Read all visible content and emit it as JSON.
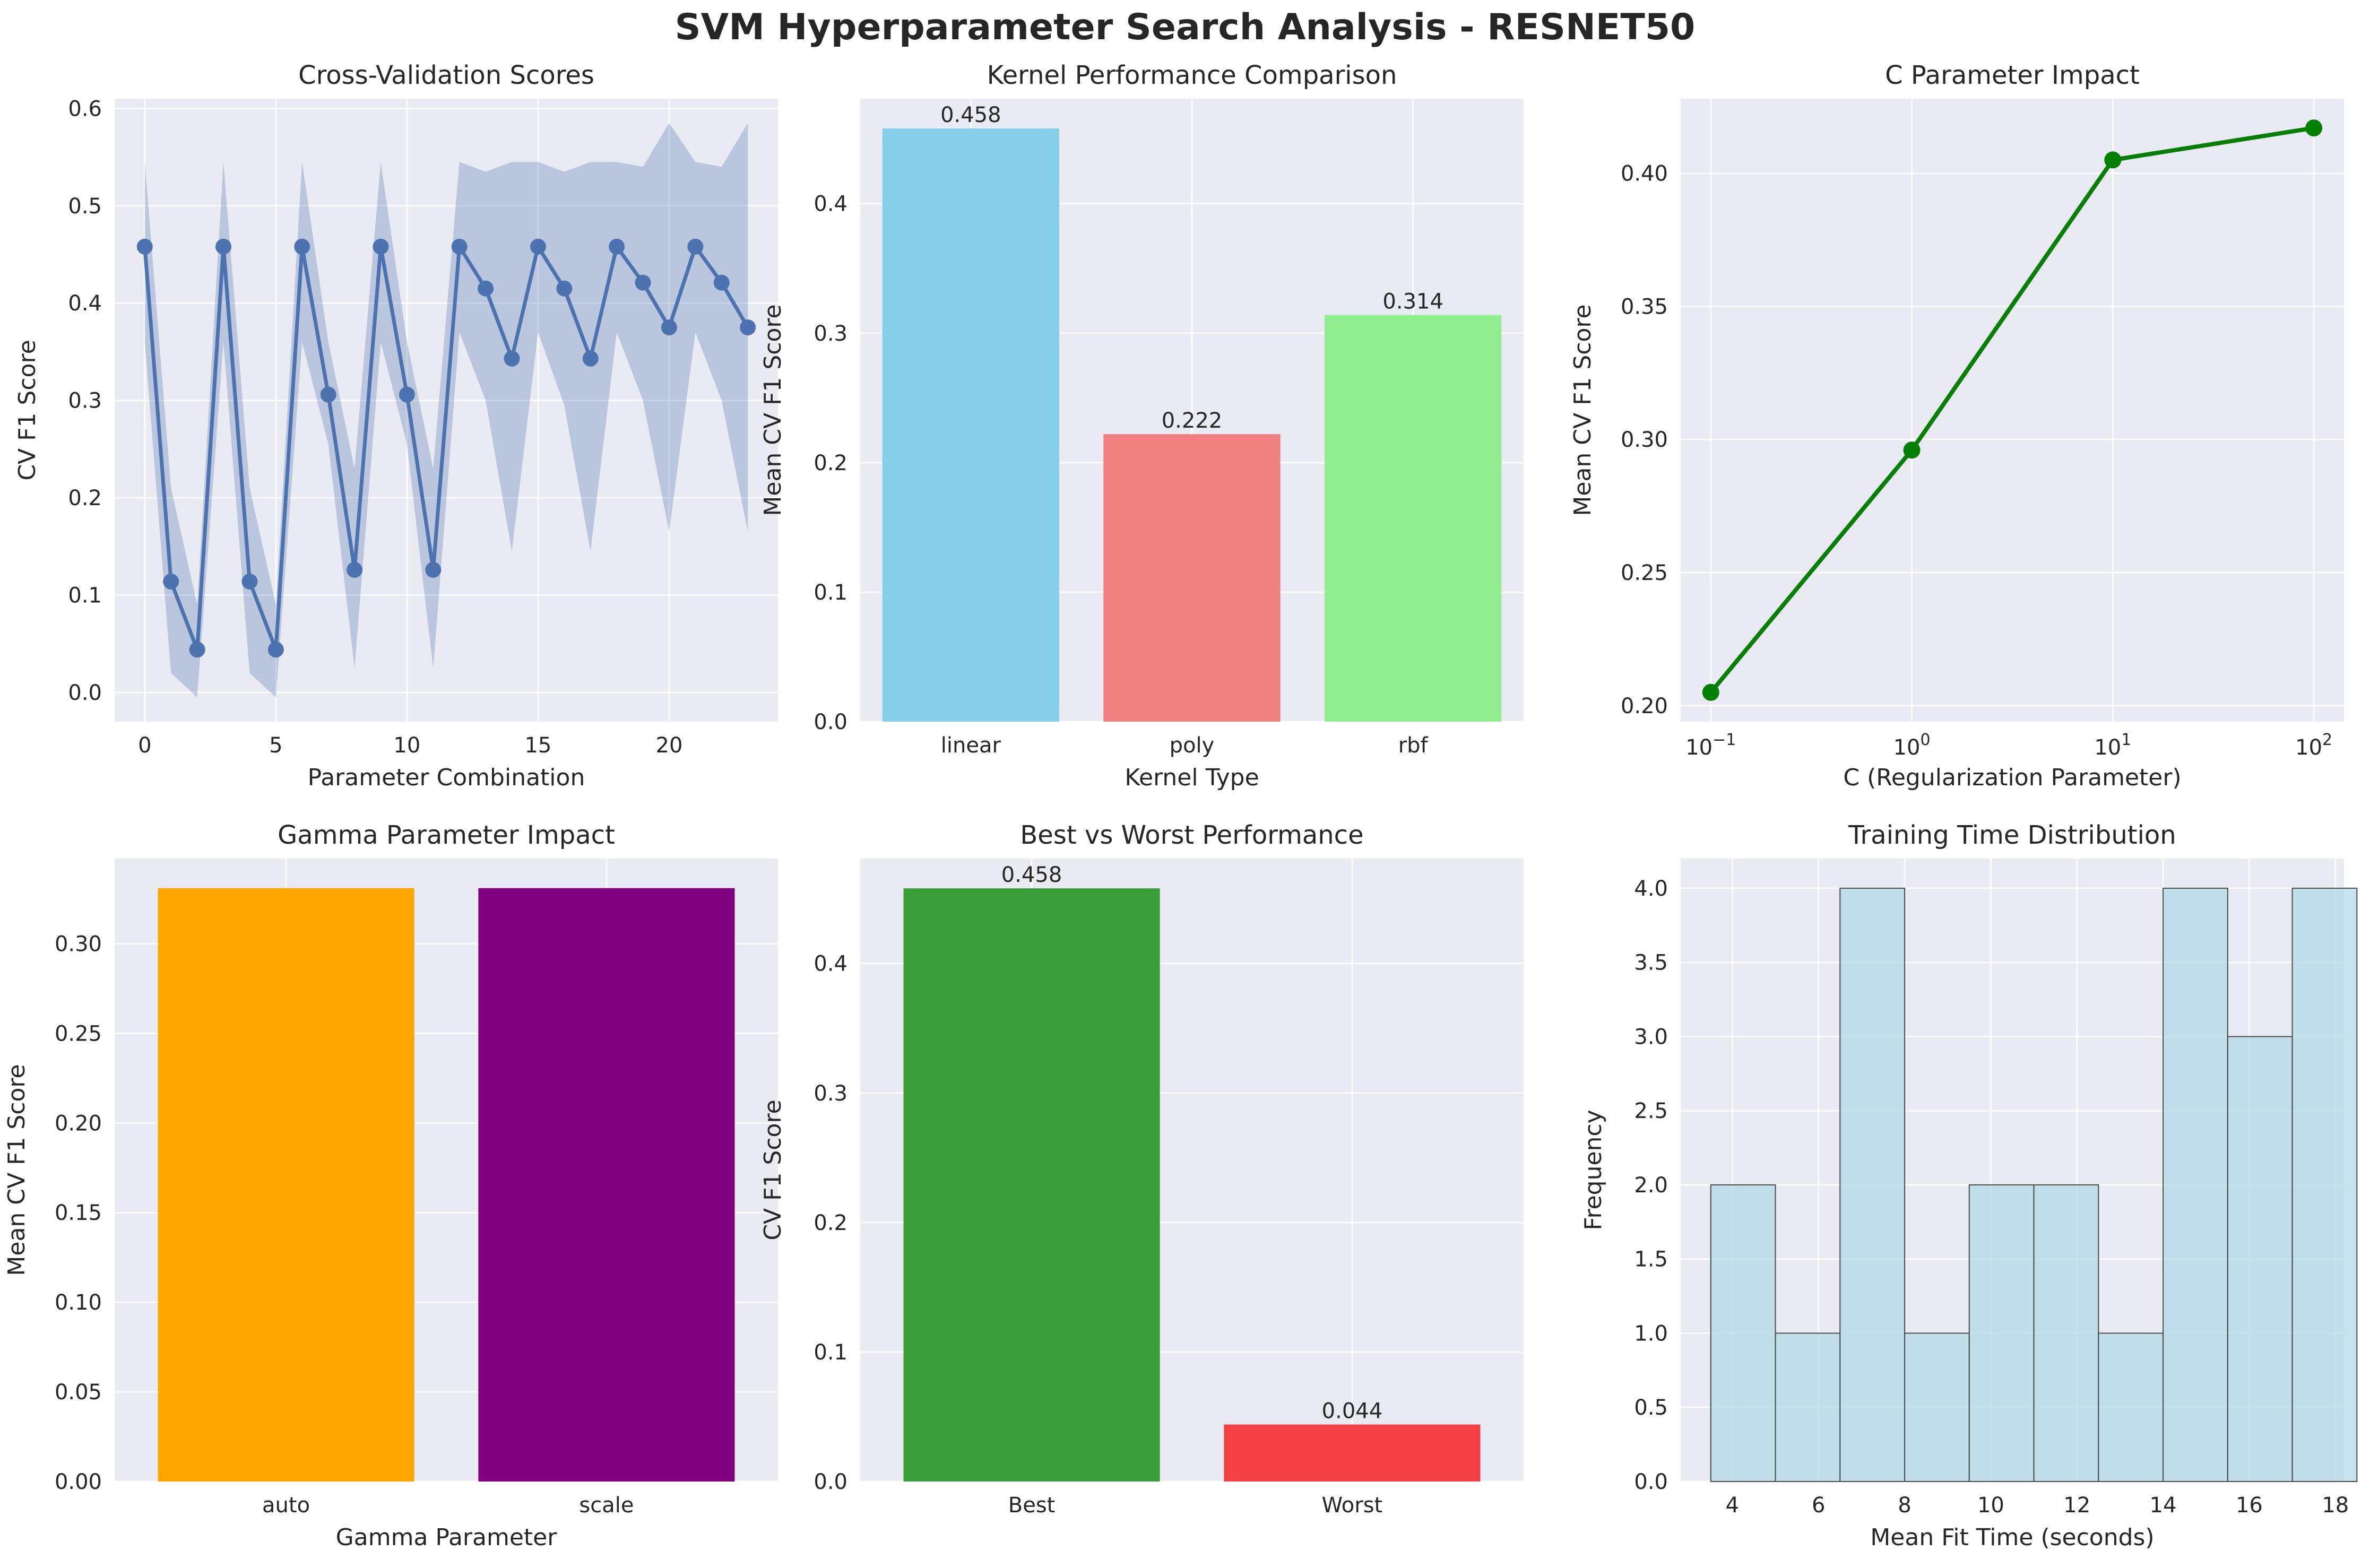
{
  "figure": {
    "title": "SVM Hyperparameter Search Analysis - RESNET50"
  },
  "colors": {
    "axes_bg": "#eaeaf2",
    "grid": "#ffffff",
    "cv_line": "#4c72b0",
    "cv_band": "#4c72b0",
    "c_line": "#007f00",
    "hist_fill": "#add8e6",
    "hist_edge": "#4a4a4a"
  },
  "chart_data": [
    {
      "id": "cv",
      "type": "line",
      "title": "Cross-Validation Scores",
      "xlabel": "Parameter Combination",
      "ylabel": "CV F1 Score",
      "xlim": [
        -1.15,
        24.15
      ],
      "ylim": [
        -0.03,
        0.61
      ],
      "xticks": [
        0,
        5,
        10,
        15,
        20
      ],
      "yticks": [
        0.0,
        0.1,
        0.2,
        0.3,
        0.4,
        0.5,
        0.6
      ],
      "tick_format": "1",
      "x": [
        0,
        1,
        2,
        3,
        4,
        5,
        6,
        7,
        8,
        9,
        10,
        11,
        12,
        13,
        14,
        15,
        16,
        17,
        18,
        19,
        20,
        21,
        22,
        23
      ],
      "series": [
        {
          "values": [
            0.458,
            0.114,
            0.044,
            0.458,
            0.114,
            0.044,
            0.458,
            0.306,
            0.126,
            0.458,
            0.306,
            0.126,
            0.458,
            0.415,
            0.343,
            0.458,
            0.415,
            0.343,
            0.458,
            0.421,
            0.375,
            0.458,
            0.421,
            0.375
          ],
          "lower": [
            0.36,
            0.02,
            -0.005,
            0.36,
            0.02,
            -0.005,
            0.36,
            0.255,
            0.025,
            0.36,
            0.255,
            0.025,
            0.37,
            0.3,
            0.145,
            0.37,
            0.295,
            0.145,
            0.37,
            0.3,
            0.165,
            0.37,
            0.3,
            0.165
          ],
          "upper": [
            0.545,
            0.21,
            0.09,
            0.545,
            0.21,
            0.09,
            0.545,
            0.36,
            0.23,
            0.545,
            0.36,
            0.23,
            0.545,
            0.535,
            0.545,
            0.545,
            0.535,
            0.545,
            0.545,
            0.54,
            0.585,
            0.545,
            0.54,
            0.585
          ]
        }
      ]
    },
    {
      "id": "kernel",
      "type": "bar",
      "title": "Kernel Performance Comparison",
      "xlabel": "Kernel Type",
      "ylabel": "Mean CV F1 Score",
      "ylim": [
        0,
        0.481
      ],
      "yticks": [
        0.0,
        0.1,
        0.2,
        0.3,
        0.4
      ],
      "tick_format": "1",
      "categories": [
        "linear",
        "poly",
        "rbf"
      ],
      "values": [
        0.458,
        0.222,
        0.314
      ],
      "value_labels": [
        "0.458",
        "0.222",
        "0.314"
      ],
      "colors": [
        "#87ceeb",
        "#f08080",
        "#90ee90"
      ]
    },
    {
      "id": "cparam",
      "type": "line",
      "title": "C Parameter Impact",
      "xlabel": "C (Regularization Parameter)",
      "ylabel": "Mean CV F1 Score",
      "xscale": "log",
      "xlim": [
        0.0708,
        141.3
      ],
      "ylim": [
        0.194,
        0.428
      ],
      "xticks": [
        0.1,
        1,
        10,
        100
      ],
      "xtick_exponents": [
        "−1",
        "0",
        "1",
        "2"
      ],
      "yticks": [
        0.2,
        0.25,
        0.3,
        0.35,
        0.4
      ],
      "tick_format": "2",
      "x": [
        0.1,
        1,
        10,
        100
      ],
      "series": [
        {
          "values": [
            0.205,
            0.296,
            0.405,
            0.417
          ]
        }
      ]
    },
    {
      "id": "gamma",
      "type": "bar",
      "title": "Gamma Parameter Impact",
      "xlabel": "Gamma Parameter",
      "ylabel": "Mean CV F1 Score",
      "ylim": [
        0,
        0.3475
      ],
      "yticks": [
        0.0,
        0.05,
        0.1,
        0.15,
        0.2,
        0.25,
        0.3
      ],
      "tick_format": "2",
      "categories": [
        "auto",
        "scale"
      ],
      "values": [
        0.331,
        0.331
      ],
      "colors": [
        "#ffa500",
        "#800080"
      ]
    },
    {
      "id": "bestworst",
      "type": "bar",
      "title": "Best vs Worst Performance",
      "xlabel": "",
      "ylabel": "CV F1 Score",
      "ylim": [
        0,
        0.481
      ],
      "yticks": [
        0.0,
        0.1,
        0.2,
        0.3,
        0.4
      ],
      "tick_format": "1",
      "categories": [
        "Best",
        "Worst"
      ],
      "values": [
        0.458,
        0.044
      ],
      "value_labels": [
        "0.458",
        "0.044"
      ],
      "colors": [
        "#399e39",
        "#f43f45"
      ]
    },
    {
      "id": "fittime",
      "type": "bar",
      "subtype": "histogram",
      "title": "Training Time Distribution",
      "xlabel": "Mean Fit Time (seconds)",
      "ylabel": "Frequency",
      "xlim": [
        2.8,
        18.2
      ],
      "ylim": [
        0,
        4.2
      ],
      "xticks": [
        4,
        6,
        8,
        10,
        12,
        14,
        16,
        18
      ],
      "yticks": [
        0.0,
        0.5,
        1.0,
        1.5,
        2.0,
        2.5,
        3.0,
        3.5,
        4.0
      ],
      "tick_format": "1",
      "bin_edges": [
        3.5,
        5.0,
        6.5,
        8.0,
        9.5,
        11.0,
        12.5,
        14.0,
        15.5,
        17.0,
        18.5
      ],
      "bin_counts": [
        2,
        1,
        4,
        1,
        2,
        2,
        1,
        4,
        3,
        4
      ]
    }
  ]
}
